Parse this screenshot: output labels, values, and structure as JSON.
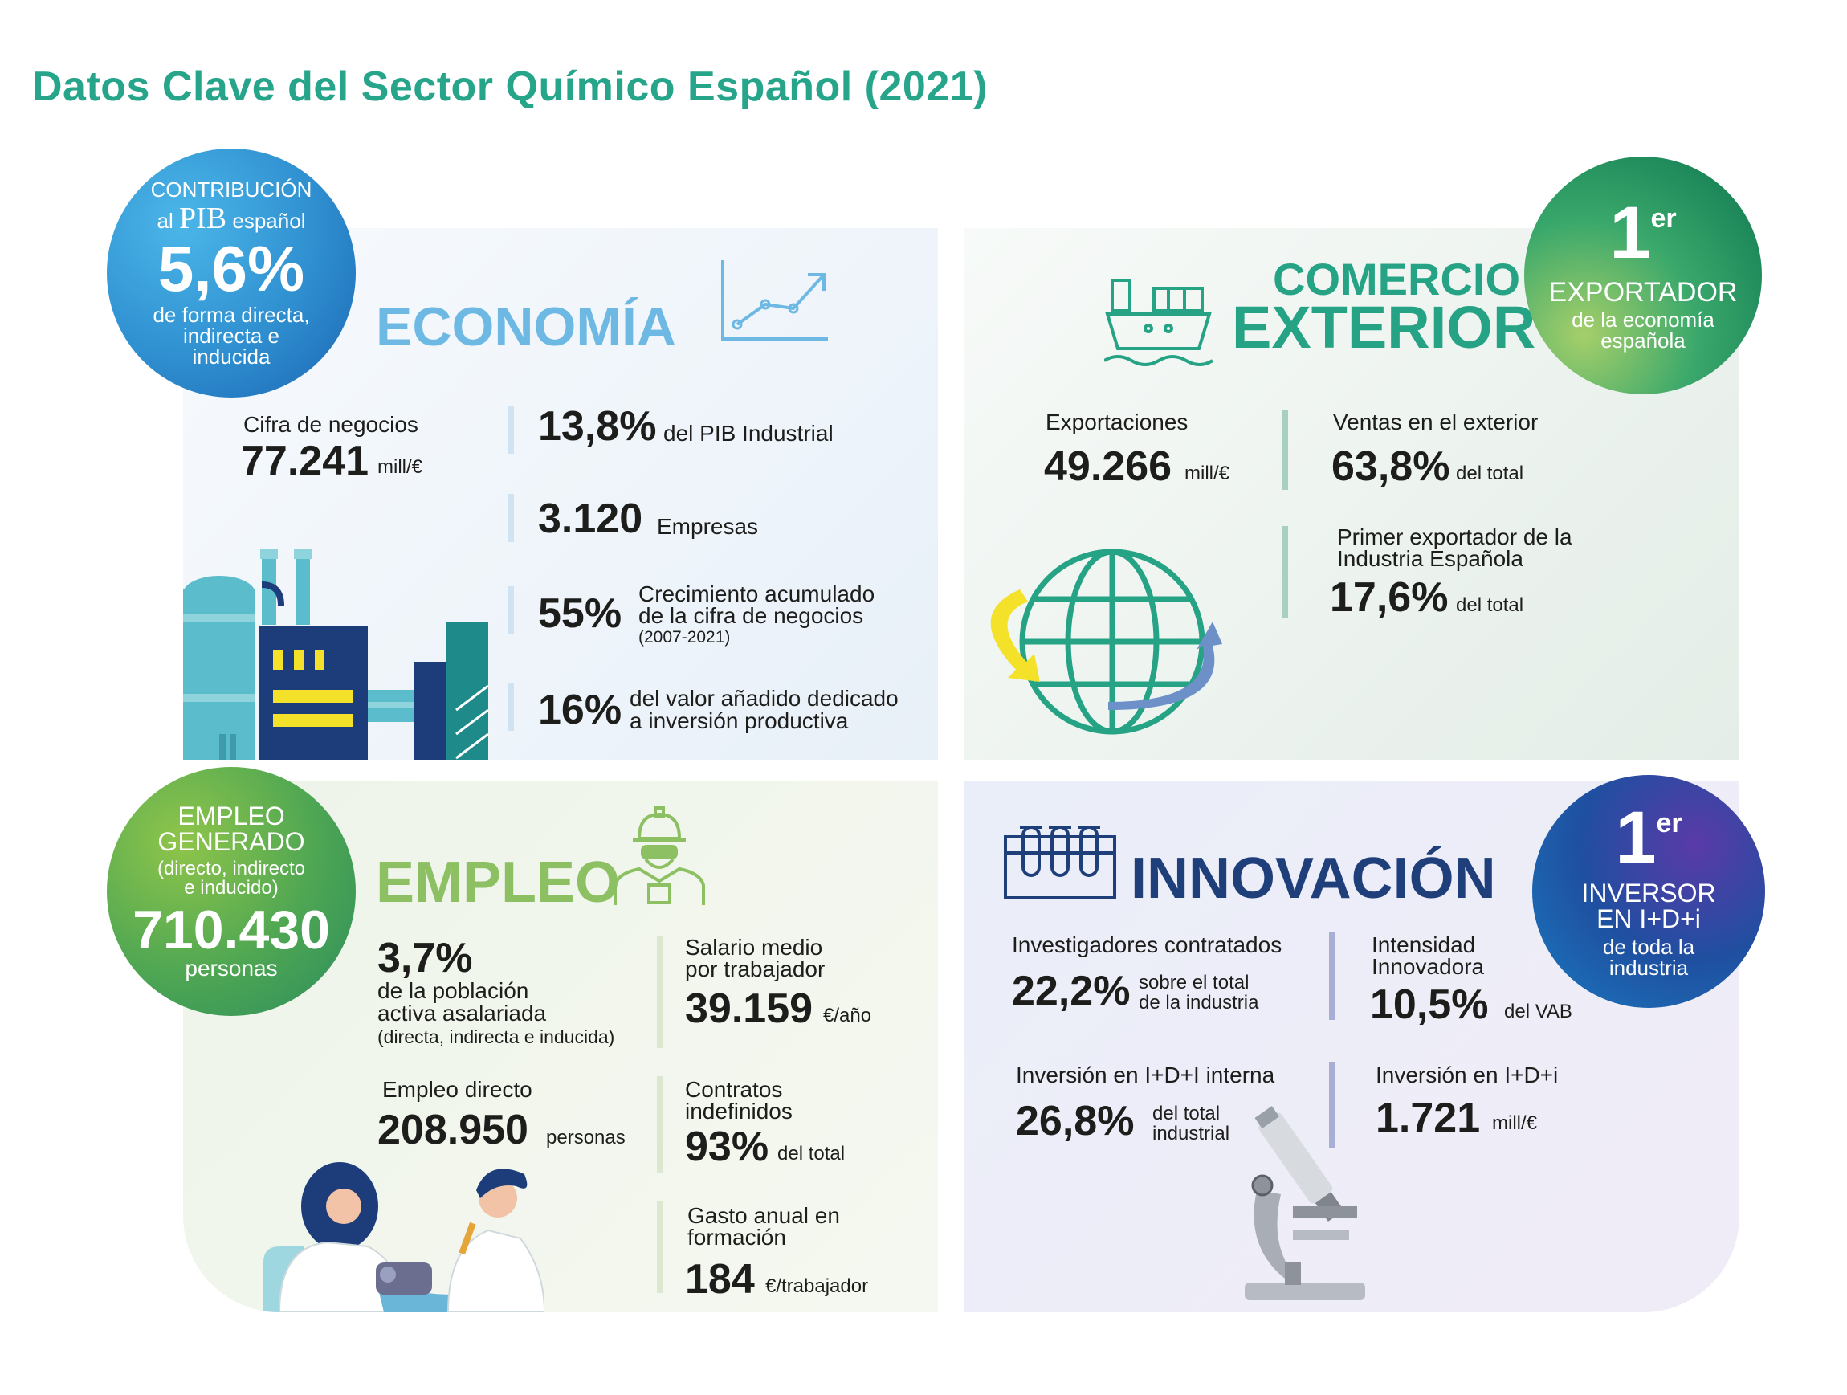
{
  "title": "Datos Clave del Sector Químico Español (2021)",
  "economia": {
    "heading": "ECONOMÍA",
    "circle": {
      "l1": "CONTRIBUCIÓN",
      "l2a": "al",
      "l2b": "PIB",
      "l2c": "español",
      "value": "5,6%",
      "d1": "de forma directa,",
      "d2": "indirecta e",
      "d3": "inducida"
    },
    "cifra_label": "Cifra de negocios",
    "cifra_value": "77.241",
    "cifra_unit": "mill/€",
    "s1_value": "13,8%",
    "s1_text": "del PIB Industrial",
    "s2_value": "3.120",
    "s2_text": "Empresas",
    "s3_value": "55%",
    "s3_l1": "Crecimiento acumulado",
    "s3_l2": "de la cifra de negocios",
    "s3_l3": "(2007-2021)",
    "s4_value": "16%",
    "s4_l1": "del valor añadido dedicado",
    "s4_l2": "a inversión productiva",
    "bar_color": "#cfe3f3"
  },
  "comercio": {
    "heading_l1": "COMERCIO",
    "heading_l2": "EXTERIOR",
    "circle": {
      "num": "1",
      "sup": "er",
      "l1": "EXPORTADOR",
      "l2": "de la economía",
      "l3": "española"
    },
    "exp_label": "Exportaciones",
    "exp_value": "49.266",
    "exp_unit": "mill/€",
    "ventas_label": "Ventas en el exterior",
    "ventas_value": "63,8%",
    "ventas_unit": "del total",
    "primer_l1": "Primer exportador de la",
    "primer_l2": "Industria Española",
    "primer_value": "17,6%",
    "primer_unit": "del total",
    "bar_color": "#a7cfc2"
  },
  "empleo": {
    "heading": "EMPLEO",
    "circle": {
      "l1": "EMPLEO",
      "l2": "GENERADO",
      "l3": "(directo, indirecto",
      "l4": "e inducido)",
      "value": "710.430",
      "unit": "personas"
    },
    "pob_value": "3,7%",
    "pob_l1": "de la población",
    "pob_l2": "activa asalariada",
    "pob_l3": "(directa, indirecta e inducida)",
    "directo_label": "Empleo directo",
    "directo_value": "208.950",
    "directo_unit": "personas",
    "salario_l1": "Salario medio",
    "salario_l2": "por trabajador",
    "salario_value": "39.159",
    "salario_unit": "€/año",
    "contratos_l1": "Contratos",
    "contratos_l2": "indefinidos",
    "contratos_value": "93%",
    "contratos_unit": "del total",
    "gasto_l1": "Gasto anual en",
    "gasto_l2": "formación",
    "gasto_value": "184",
    "gasto_unit": "€/trabajador",
    "bar_color": "#dbe8cf"
  },
  "innovacion": {
    "heading": "INNOVACIÓN",
    "circle": {
      "num": "1",
      "sup": "er",
      "l1": "INVERSOR",
      "l2": "EN I+D+i",
      "l3": "de toda la",
      "l4": "industria"
    },
    "inv_label": "Investigadores contratados",
    "inv_value": "22,2%",
    "inv_u1": "sobre el total",
    "inv_u2": "de la industria",
    "int_l1": "Intensidad",
    "int_l2": "Innovadora",
    "int_value": "10,5%",
    "int_unit": "del VAB",
    "interna_label": "Inversión en I+D+I interna",
    "interna_value": "26,8%",
    "interna_u1": "del total",
    "interna_u2": "industrial",
    "idi_label": "Inversión en I+D+i",
    "idi_value": "1.721",
    "idi_unit": "mill/€",
    "bar_color": "#a9aed4"
  },
  "colors": {
    "eco_heading": "#6db9e3",
    "com_heading": "#25a384",
    "emp_heading": "#8cc063",
    "inn_heading": "#1e3f7a",
    "title": "#26a58a"
  }
}
